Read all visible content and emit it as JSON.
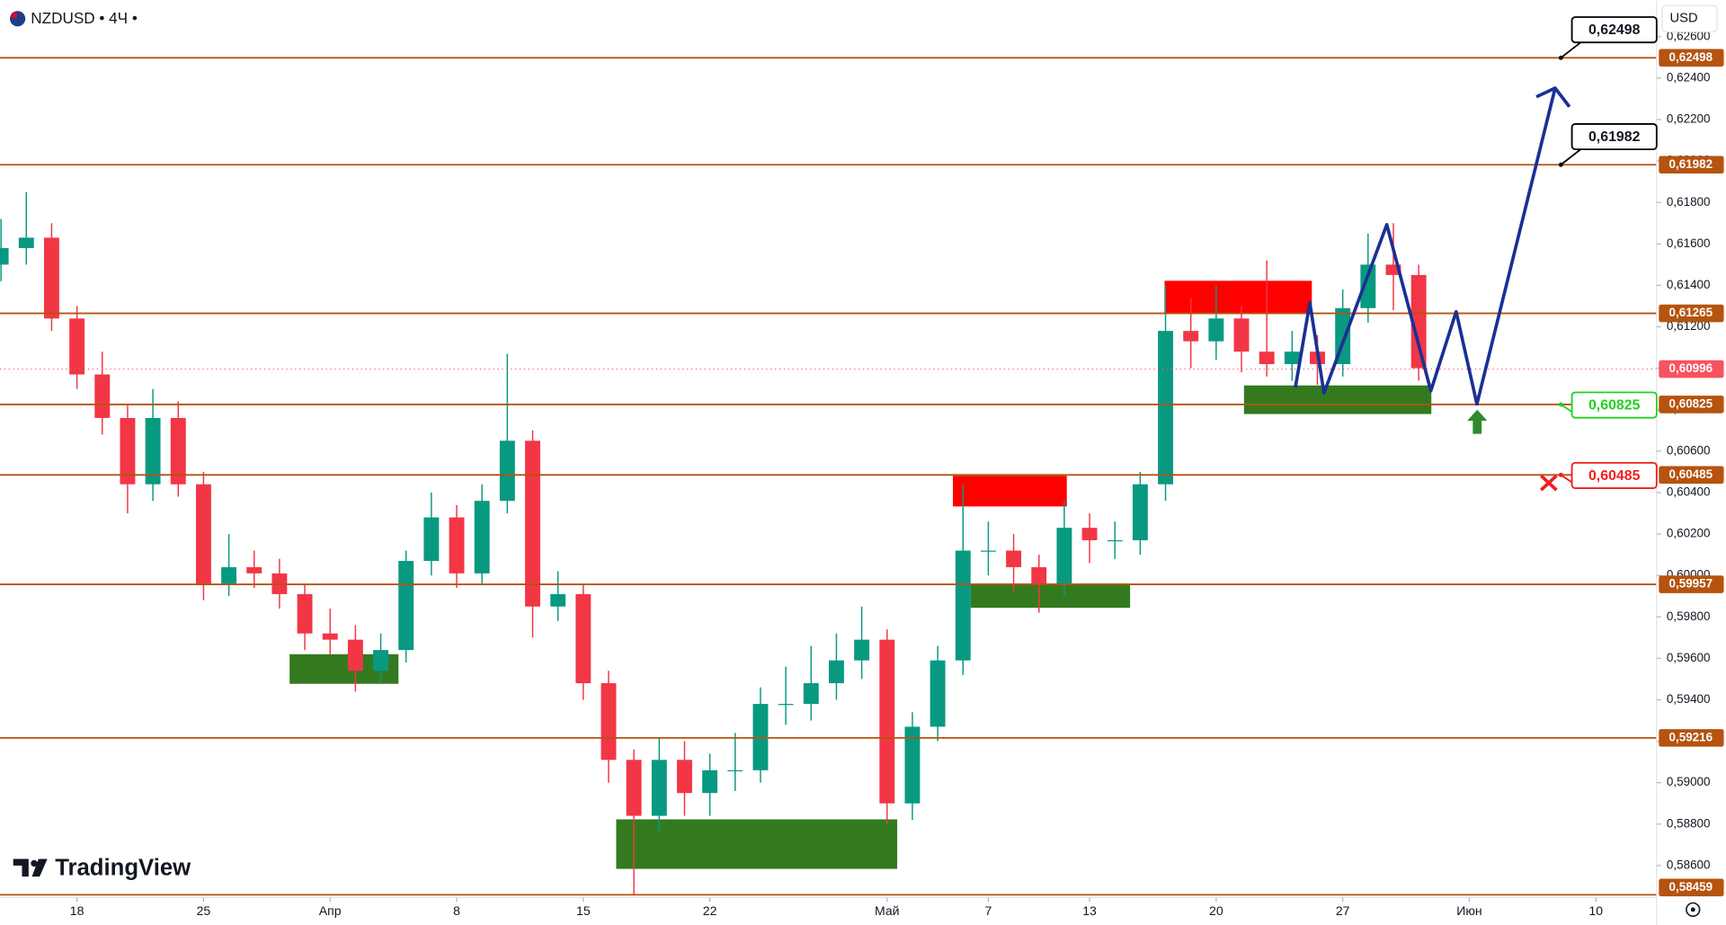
{
  "header": {
    "symbol": "NZDUSD",
    "interval": "4Ч",
    "currency": "USD",
    "brand": "TradingView"
  },
  "chart_data": {
    "type": "candlestick",
    "up_color": "#089981",
    "down_color": "#f23645",
    "x": [
      -3,
      -2,
      -1,
      0,
      1,
      2,
      3,
      4,
      5,
      6,
      7,
      8,
      9,
      10,
      11,
      12,
      13,
      14,
      15,
      16,
      17,
      18,
      19,
      20,
      21,
      22,
      23,
      24,
      25,
      26,
      27,
      28,
      29,
      30,
      31,
      32,
      33,
      34,
      35,
      36,
      37,
      38,
      39,
      40,
      41,
      42,
      43,
      44,
      45,
      46,
      47,
      48,
      49,
      50,
      51,
      52,
      53
    ],
    "ohlc": [
      [
        0.615,
        0.6172,
        0.6142,
        0.6158
      ],
      [
        0.6158,
        0.6185,
        0.615,
        0.6163
      ],
      [
        0.6163,
        0.617,
        0.6118,
        0.6124
      ],
      [
        0.6124,
        0.613,
        0.609,
        0.6097
      ],
      [
        0.6097,
        0.6108,
        0.6068,
        0.6076
      ],
      [
        0.6076,
        0.6082,
        0.603,
        0.6044
      ],
      [
        0.6044,
        0.609,
        0.6036,
        0.6076
      ],
      [
        0.6076,
        0.6084,
        0.6038,
        0.6044
      ],
      [
        0.6044,
        0.605,
        0.5988,
        0.5996
      ],
      [
        0.5996,
        0.602,
        0.599,
        0.6004
      ],
      [
        0.6004,
        0.6012,
        0.5994,
        0.6001
      ],
      [
        0.6001,
        0.6008,
        0.5984,
        0.5991
      ],
      [
        0.5991,
        0.5996,
        0.5964,
        0.5972
      ],
      [
        0.5972,
        0.5984,
        0.5962,
        0.5969
      ],
      [
        0.5969,
        0.5976,
        0.5944,
        0.5954
      ],
      [
        0.5954,
        0.5972,
        0.5948,
        0.5964
      ],
      [
        0.5964,
        0.6012,
        0.5958,
        0.6007
      ],
      [
        0.6007,
        0.604,
        0.6,
        0.6028
      ],
      [
        0.6028,
        0.6034,
        0.5994,
        0.6001
      ],
      [
        0.6001,
        0.6044,
        0.5996,
        0.6036
      ],
      [
        0.6036,
        0.6107,
        0.603,
        0.6065
      ],
      [
        0.6065,
        0.607,
        0.597,
        0.5985
      ],
      [
        0.5985,
        0.6002,
        0.5978,
        0.5991
      ],
      [
        0.5991,
        0.5996,
        0.594,
        0.5948
      ],
      [
        0.5948,
        0.5954,
        0.59,
        0.5911
      ],
      [
        0.5911,
        0.5916,
        0.5846,
        0.5884
      ],
      [
        0.5884,
        0.5922,
        0.5876,
        0.5911
      ],
      [
        0.5911,
        0.592,
        0.5884,
        0.5895
      ],
      [
        0.5895,
        0.5914,
        0.5884,
        0.5906
      ],
      [
        0.5906,
        0.5924,
        0.5896,
        0.5906
      ],
      [
        0.5906,
        0.5946,
        0.59,
        0.5938
      ],
      [
        0.5938,
        0.5956,
        0.5928,
        0.5938
      ],
      [
        0.5938,
        0.5966,
        0.593,
        0.5948
      ],
      [
        0.5948,
        0.5972,
        0.594,
        0.5959
      ],
      [
        0.5959,
        0.5985,
        0.595,
        0.5969
      ],
      [
        0.5969,
        0.5974,
        0.588,
        0.589
      ],
      [
        0.589,
        0.5934,
        0.5882,
        0.5927
      ],
      [
        0.5927,
        0.5966,
        0.592,
        0.5959
      ],
      [
        0.5959,
        0.6044,
        0.5952,
        0.6012
      ],
      [
        0.6012,
        0.6026,
        0.6,
        0.6012
      ],
      [
        0.6012,
        0.602,
        0.5992,
        0.6004
      ],
      [
        0.6004,
        0.601,
        0.5982,
        0.5996
      ],
      [
        0.5996,
        0.6036,
        0.599,
        0.6023
      ],
      [
        0.6023,
        0.603,
        0.6006,
        0.6017
      ],
      [
        0.6017,
        0.6026,
        0.6008,
        0.6017
      ],
      [
        0.6017,
        0.605,
        0.601,
        0.6044
      ],
      [
        0.6044,
        0.614,
        0.6036,
        0.6118
      ],
      [
        0.6118,
        0.6134,
        0.61,
        0.6113
      ],
      [
        0.6113,
        0.614,
        0.6104,
        0.6124
      ],
      [
        0.6124,
        0.613,
        0.6098,
        0.6108
      ],
      [
        0.6108,
        0.6152,
        0.6096,
        0.6102
      ],
      [
        0.6102,
        0.6118,
        0.6094,
        0.6108
      ],
      [
        0.6108,
        0.6116,
        0.6092,
        0.6102
      ],
      [
        0.6102,
        0.6138,
        0.6096,
        0.6129
      ],
      [
        0.6129,
        0.6165,
        0.6122,
        0.615
      ],
      [
        0.615,
        0.617,
        0.6128,
        0.6145
      ],
      [
        0.6145,
        0.615,
        0.6094,
        0.61
      ]
    ],
    "xlim": [
      -3.04,
      62.4
    ],
    "ylim": [
      0.58446,
      0.62777
    ],
    "xticks": [
      {
        "value": 0,
        "label": "18"
      },
      {
        "value": 5,
        "label": "25"
      },
      {
        "value": 10,
        "label": "Апр"
      },
      {
        "value": 15,
        "label": "8"
      },
      {
        "value": 20,
        "label": "15"
      },
      {
        "value": 25,
        "label": "22"
      },
      {
        "value": 32,
        "label": "Май"
      },
      {
        "value": 36,
        "label": "7"
      },
      {
        "value": 40,
        "label": "13"
      },
      {
        "value": 45,
        "label": "20"
      },
      {
        "value": 50,
        "label": "27"
      },
      {
        "value": 55,
        "label": "Июн"
      },
      {
        "value": 60,
        "label": "10"
      }
    ],
    "yticks": [
      {
        "value": 0.626,
        "label": "0,62600"
      },
      {
        "value": 0.624,
        "label": "0,62400"
      },
      {
        "value": 0.622,
        "label": "0,62200"
      },
      {
        "value": 0.62,
        "label": "0,62000"
      },
      {
        "value": 0.618,
        "label": "0,61800"
      },
      {
        "value": 0.616,
        "label": "0,61600"
      },
      {
        "value": 0.614,
        "label": "0,61400"
      },
      {
        "value": 0.612,
        "label": "0,61200"
      },
      {
        "value": 0.61,
        "label": "0,61000"
      },
      {
        "value": 0.608,
        "label": "0,60800"
      },
      {
        "value": 0.606,
        "label": "0,60600"
      },
      {
        "value": 0.604,
        "label": "0,60400"
      },
      {
        "value": 0.602,
        "label": "0,60200"
      },
      {
        "value": 0.6,
        "label": "0,60000"
      },
      {
        "value": 0.598,
        "label": "0,59800"
      },
      {
        "value": 0.596,
        "label": "0,59600"
      },
      {
        "value": 0.594,
        "label": "0,59400"
      },
      {
        "value": 0.592,
        "label": "0,59200"
      },
      {
        "value": 0.59,
        "label": "0,59000"
      },
      {
        "value": 0.588,
        "label": "0,58800"
      },
      {
        "value": 0.586,
        "label": "0,58600"
      }
    ],
    "level_color": "#b5530f",
    "levels": [
      {
        "value": 0.62498,
        "label": "0,62498"
      },
      {
        "value": 0.61982,
        "label": "0,61982"
      },
      {
        "value": 0.61265,
        "label": "0,61265"
      },
      {
        "value": 0.60825,
        "label": "0,60825"
      },
      {
        "value": 0.60485,
        "label": "0,60485"
      },
      {
        "value": 0.59957,
        "label": "0,59957"
      },
      {
        "value": 0.59216,
        "label": "0,59216"
      },
      {
        "value": 0.58459,
        "label": "0,58459"
      }
    ],
    "last_price": {
      "value": 0.60996,
      "label": "0,60996",
      "color": "#f7525f"
    },
    "zones": [
      {
        "color": "#ff0000",
        "x": [
          42.96,
          48.78
        ],
        "y": [
          0.61422,
          0.61263
        ]
      },
      {
        "color": "#ff0000",
        "x": [
          34.6,
          39.1
        ],
        "y": [
          0.60481,
          0.60333
        ]
      },
      {
        "color": "#337a1f",
        "x": [
          46.1,
          53.5
        ],
        "y": [
          0.60917,
          0.60779
        ]
      },
      {
        "color": "#337a1f",
        "x": [
          35.3,
          41.6
        ],
        "y": [
          0.59961,
          0.59844
        ]
      },
      {
        "color": "#337a1f",
        "x": [
          8.4,
          12.7
        ],
        "y": [
          0.5962,
          0.59477
        ]
      },
      {
        "color": "#337a1f",
        "x": [
          21.3,
          32.4
        ],
        "y": [
          0.58823,
          0.58584
        ]
      }
    ],
    "projection": {
      "color": "#1c2f94",
      "x": [
        48.13,
        48.7,
        49.26,
        51.74,
        53.48,
        54.48,
        55.3,
        58.39
      ],
      "y": [
        0.60907,
        0.61316,
        0.6088,
        0.61693,
        0.60891,
        0.61273,
        0.60827,
        0.62352
      ]
    },
    "callouts": [
      {
        "value": 0.62498,
        "label": "0,62498",
        "color": "#000000"
      },
      {
        "value": 0.61982,
        "label": "0,61982",
        "color": "#000000"
      },
      {
        "value": 0.60825,
        "label": "0,60825",
        "color": "#22d11f"
      },
      {
        "value": 0.60485,
        "label": "0,60485",
        "color": "#f21d1d"
      }
    ]
  }
}
